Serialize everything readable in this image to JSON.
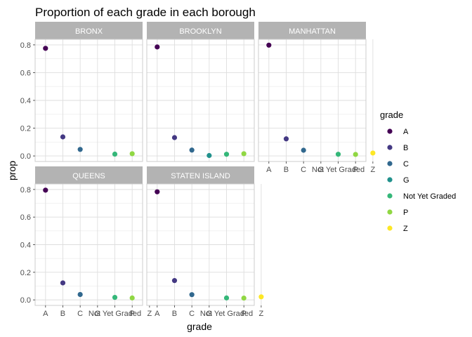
{
  "chart_data": {
    "type": "scatter",
    "title": "Proportion of each grade in each borough",
    "xlabel": "grade",
    "ylabel": "prop",
    "categories": [
      "A",
      "B",
      "C",
      "G",
      "Not Yet Graded",
      "P",
      "Z"
    ],
    "x_tick_labels": [
      "A",
      "B",
      "C",
      "G",
      "Not Yet Graded",
      "P",
      "Z"
    ],
    "y_ticks": [
      0.0,
      0.2,
      0.4,
      0.6,
      0.8
    ],
    "y_tick_labels": [
      "0.0",
      "0.2",
      "0.4",
      "0.6",
      "0.8"
    ],
    "ylim": [
      -0.04,
      0.84
    ],
    "grid": true,
    "legend": {
      "title": "grade",
      "placement": "right",
      "entries": [
        "A",
        "B",
        "C",
        "G",
        "Not Yet Graded",
        "P",
        "Z"
      ]
    },
    "colors": {
      "A": "#440154",
      "B": "#443983",
      "C": "#31688e",
      "G": "#21918c",
      "Not Yet Graded": "#35b779",
      "P": "#90d743",
      "Z": "#fde725"
    },
    "panels": [
      {
        "name": "BRONX",
        "points": [
          {
            "grade": "A",
            "prop": 0.775
          },
          {
            "grade": "B",
            "prop": 0.137
          },
          {
            "grade": "C",
            "prop": 0.047
          },
          {
            "grade": "Not Yet Graded",
            "prop": 0.013
          },
          {
            "grade": "P",
            "prop": 0.016
          },
          {
            "grade": "Z",
            "prop": 0.022
          }
        ]
      },
      {
        "name": "BROOKLYN",
        "points": [
          {
            "grade": "A",
            "prop": 0.785
          },
          {
            "grade": "B",
            "prop": 0.132
          },
          {
            "grade": "C",
            "prop": 0.042
          },
          {
            "grade": "G",
            "prop": 0.003
          },
          {
            "grade": "Not Yet Graded",
            "prop": 0.012
          },
          {
            "grade": "P",
            "prop": 0.016
          },
          {
            "grade": "Z",
            "prop": 0.021
          }
        ]
      },
      {
        "name": "MANHATTAN",
        "points": [
          {
            "grade": "A",
            "prop": 0.798
          },
          {
            "grade": "B",
            "prop": 0.123
          },
          {
            "grade": "C",
            "prop": 0.041
          },
          {
            "grade": "Not Yet Graded",
            "prop": 0.012
          },
          {
            "grade": "P",
            "prop": 0.011
          },
          {
            "grade": "Z",
            "prop": 0.021
          }
        ]
      },
      {
        "name": "QUEENS",
        "points": [
          {
            "grade": "A",
            "prop": 0.795
          },
          {
            "grade": "B",
            "prop": 0.123
          },
          {
            "grade": "C",
            "prop": 0.039
          },
          {
            "grade": "Not Yet Graded",
            "prop": 0.018
          },
          {
            "grade": "P",
            "prop": 0.014
          },
          {
            "grade": "Z",
            "prop": 0.025
          }
        ]
      },
      {
        "name": "STATEN ISLAND",
        "points": [
          {
            "grade": "A",
            "prop": 0.783
          },
          {
            "grade": "B",
            "prop": 0.14
          },
          {
            "grade": "C",
            "prop": 0.038
          },
          {
            "grade": "Not Yet Graded",
            "prop": 0.014
          },
          {
            "grade": "P",
            "prop": 0.013
          },
          {
            "grade": "Z",
            "prop": 0.022
          }
        ]
      }
    ]
  }
}
